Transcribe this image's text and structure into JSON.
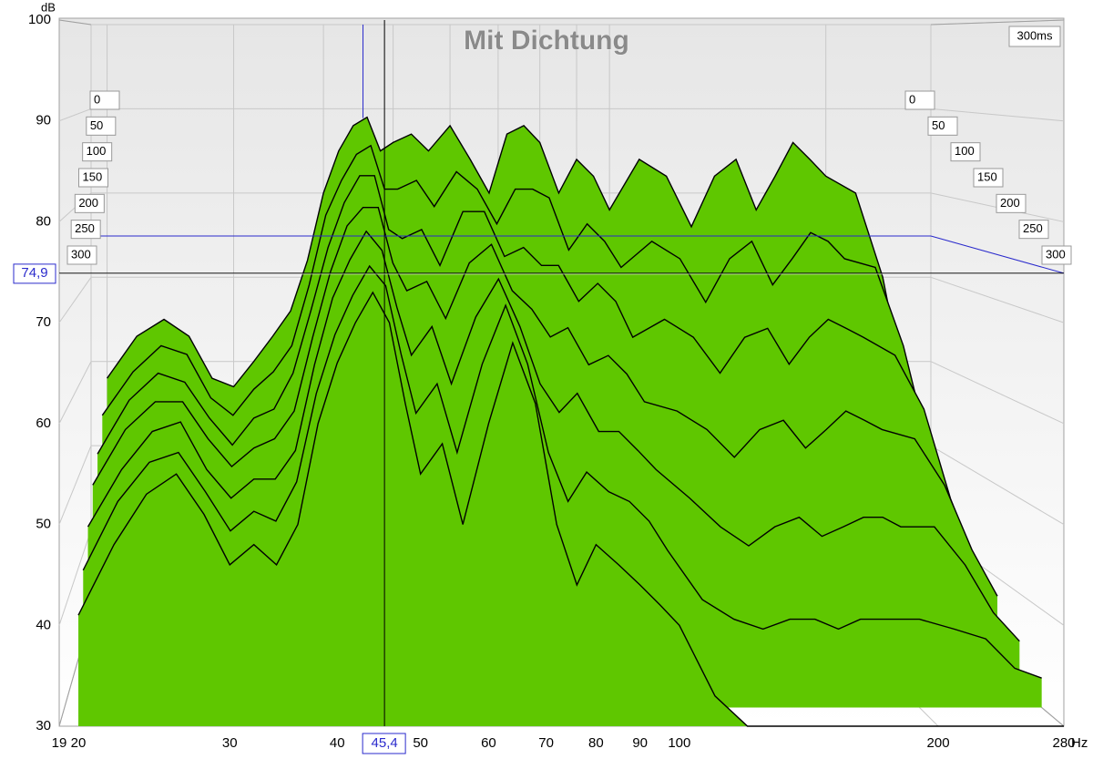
{
  "chart_data": {
    "type": "waterfall",
    "title": "Mit Dichtung",
    "ylabel": "dB",
    "xlabel": "Hz",
    "time_label": "300ms",
    "log_x": true,
    "grid": true,
    "color": "#5fc700",
    "xlim": [
      19,
      280
    ],
    "ylim": [
      30,
      100
    ],
    "zlim": [
      0,
      300
    ],
    "xticks": [
      19,
      20,
      30,
      40,
      50,
      60,
      70,
      80,
      90,
      100,
      200,
      280
    ],
    "yticks": [
      30,
      40,
      50,
      60,
      70,
      80,
      90,
      100
    ],
    "zticks": [
      0,
      50,
      100,
      150,
      200,
      250,
      300
    ],
    "cursor": {
      "x": {
        "value": 45.4,
        "label": "45,4"
      },
      "y": {
        "value": 74.9,
        "label": "74,9"
      }
    },
    "x": [
      20,
      22,
      24,
      26,
      28,
      30,
      32,
      34,
      36,
      38,
      40,
      42,
      44,
      46,
      48,
      50,
      53,
      56,
      60,
      64,
      68,
      72,
      76,
      80,
      85,
      90,
      95,
      100,
      110,
      120,
      130,
      140,
      150,
      160,
      170,
      180,
      190,
      200,
      220,
      240,
      260,
      280
    ],
    "slices": [
      {
        "time": 0,
        "values": [
          58,
          63,
          65,
          63,
          58,
          57,
          60,
          63,
          66,
          72,
          80,
          85,
          88,
          89,
          85,
          86,
          87,
          85,
          88,
          84,
          80,
          87,
          88,
          86,
          80,
          84,
          82,
          78,
          84,
          82,
          76,
          82,
          84,
          78,
          82,
          86,
          84,
          82,
          80,
          70,
          55,
          45
        ]
      },
      {
        "time": 50,
        "values": [
          55,
          60,
          63,
          62,
          57,
          55,
          58,
          60,
          63,
          70,
          78,
          82,
          85,
          86,
          81,
          81,
          82,
          79,
          83,
          81,
          77,
          81,
          81,
          80,
          74,
          77,
          75,
          72,
          75,
          73,
          68,
          73,
          75,
          70,
          73,
          76,
          75,
          73,
          72,
          63,
          51,
          42
        ]
      },
      {
        "time": 100,
        "values": [
          52,
          58,
          61,
          60,
          56,
          53,
          56,
          57,
          61,
          68,
          75,
          80,
          83,
          83,
          77,
          76,
          77,
          73,
          79,
          79,
          74,
          75,
          73,
          73,
          69,
          71,
          69,
          65,
          67,
          65,
          61,
          65,
          66,
          62,
          65,
          67,
          66,
          65,
          63,
          57,
          47,
          40
        ]
      },
      {
        "time": 150,
        "values": [
          50,
          56,
          59,
          59,
          55,
          52,
          54,
          55,
          58,
          66,
          73,
          78,
          80,
          80,
          74,
          71,
          72,
          68,
          74,
          76,
          71,
          69,
          66,
          67,
          63,
          64,
          62,
          59,
          58,
          56,
          53,
          56,
          57,
          54,
          56,
          58,
          57,
          56,
          55,
          50,
          43,
          38
        ]
      },
      {
        "time": 200,
        "values": [
          47,
          53,
          57,
          58,
          53,
          50,
          52,
          52,
          55,
          64,
          71,
          75,
          78,
          76,
          70,
          65,
          68,
          62,
          69,
          73,
          68,
          62,
          59,
          61,
          57,
          57,
          55,
          53,
          50,
          47,
          45,
          47,
          48,
          46,
          47,
          48,
          48,
          47,
          47,
          43,
          38,
          35
        ]
      },
      {
        "time": 250,
        "values": [
          44,
          51,
          55,
          56,
          52,
          48,
          50,
          49,
          53,
          62,
          68,
          72,
          75,
          73,
          66,
          60,
          63,
          56,
          65,
          71,
          65,
          56,
          51,
          54,
          52,
          51,
          49,
          46,
          41,
          39,
          38,
          39,
          39,
          38,
          39,
          39,
          39,
          39,
          38,
          37,
          34,
          33
        ]
      },
      {
        "time": 300,
        "values": [
          41,
          48,
          53,
          55,
          51,
          46,
          48,
          46,
          50,
          60,
          66,
          70,
          73,
          70,
          62,
          55,
          58,
          50,
          60,
          68,
          62,
          50,
          44,
          48,
          46,
          44,
          42,
          40,
          33,
          30,
          30,
          30,
          30,
          30,
          30,
          30,
          30,
          30,
          30,
          30,
          30,
          30
        ]
      }
    ]
  }
}
